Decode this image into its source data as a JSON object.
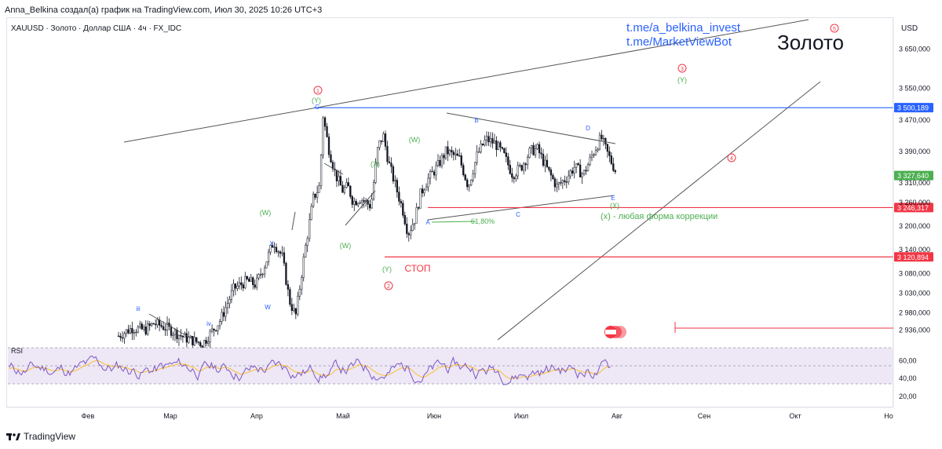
{
  "caption": "Anna_Belkina создал(а) график на TradingView.com, Июл 30, 2025 10:26 UTC+3",
  "symbol_line": "XAUUSD · Золото · Доллар США · 4ч · FX_IDC",
  "currency": "USD",
  "links": [
    "t.me/a_belkina_invest",
    "t.me/MarketViewBot"
  ],
  "watermark": "Золото",
  "footer_brand": "TradingView",
  "colors": {
    "blue_level": "#2962ff",
    "red_level": "#f23645",
    "green_level": "#4caf50",
    "candle": "#131722",
    "rsi_line": "#7e57c2",
    "rsi_ma": "#fbc02d",
    "rsi_band": "#ede7f6"
  },
  "chart_data": {
    "type": "candlestick",
    "x_labels": [
      "Фев",
      "Мар",
      "Апр",
      "Май",
      "Июн",
      "Июл",
      "Авг",
      "Сен",
      "Окт",
      "Но"
    ],
    "ylim": [
      2900,
      3730
    ],
    "y_ticks": [
      "3 650,000",
      "3 550,000",
      "3 470,000",
      "3 390,000",
      "3 310,000",
      "3 260,000",
      "3 200,000",
      "3 140,000",
      "3 080,000",
      "3 030,000",
      "2 980,000",
      "2 936,000"
    ],
    "y_tick_values": [
      3650,
      3550,
      3470,
      3390,
      3310,
      3260,
      3200,
      3140,
      3080,
      3030,
      2980,
      2936
    ],
    "price_path": [
      [
        0.125,
        2920
      ],
      [
        0.14,
        2940
      ],
      [
        0.155,
        2935
      ],
      [
        0.165,
        2952
      ],
      [
        0.18,
        2940
      ],
      [
        0.2,
        2915
      ],
      [
        0.22,
        2900
      ],
      [
        0.24,
        2960
      ],
      [
        0.255,
        3040
      ],
      [
        0.27,
        3060
      ],
      [
        0.28,
        3050
      ],
      [
        0.29,
        3100
      ],
      [
        0.3,
        3160
      ],
      [
        0.31,
        3120
      ],
      [
        0.318,
        3010
      ],
      [
        0.325,
        2970
      ],
      [
        0.335,
        3130
      ],
      [
        0.345,
        3270
      ],
      [
        0.352,
        3300
      ],
      [
        0.356,
        3480
      ],
      [
        0.362,
        3400
      ],
      [
        0.37,
        3330
      ],
      [
        0.378,
        3290
      ],
      [
        0.384,
        3300
      ],
      [
        0.39,
        3260
      ],
      [
        0.398,
        3270
      ],
      [
        0.41,
        3250
      ],
      [
        0.418,
        3400
      ],
      [
        0.424,
        3430
      ],
      [
        0.43,
        3360
      ],
      [
        0.438,
        3300
      ],
      [
        0.446,
        3240
      ],
      [
        0.452,
        3180
      ],
      [
        0.46,
        3220
      ],
      [
        0.466,
        3280
      ],
      [
        0.47,
        3300
      ],
      [
        0.475,
        3320
      ],
      [
        0.485,
        3350
      ],
      [
        0.495,
        3390
      ],
      [
        0.51,
        3370
      ],
      [
        0.52,
        3300
      ],
      [
        0.53,
        3380
      ],
      [
        0.54,
        3420
      ],
      [
        0.55,
        3410
      ],
      [
        0.56,
        3380
      ],
      [
        0.57,
        3330
      ],
      [
        0.58,
        3350
      ],
      [
        0.59,
        3390
      ],
      [
        0.598,
        3395
      ],
      [
        0.61,
        3340
      ],
      [
        0.62,
        3300
      ],
      [
        0.63,
        3320
      ],
      [
        0.64,
        3350
      ],
      [
        0.65,
        3330
      ],
      [
        0.66,
        3380
      ],
      [
        0.67,
        3425
      ],
      [
        0.676,
        3390
      ],
      [
        0.682,
        3360
      ],
      [
        0.688,
        3332
      ]
    ],
    "rsi": {
      "label": "RSI",
      "y_ticks": [
        "60,00",
        "40,00",
        "20,00"
      ],
      "y_tick_values": [
        60,
        40,
        20
      ],
      "upper": 70,
      "lower": 30,
      "ylim": [
        10,
        80
      ]
    },
    "levels": [
      {
        "name": "resistance-3500",
        "value": 3500.189,
        "label": "3 500,189",
        "color": "#2962ff"
      },
      {
        "name": "current-price",
        "value": 3327.64,
        "label": "3 327,640",
        "color": "#4caf50"
      },
      {
        "name": "support-3246",
        "value": 3246.317,
        "label": "3 246,317",
        "color": "#f23645"
      },
      {
        "name": "stop-3120",
        "value": 3120.894,
        "label": "3 120,894",
        "color": "#f23645"
      }
    ],
    "annotations": {
      "fib": "61,80%",
      "stop": "СТОП",
      "correction": "(x) - любая форма коррекции",
      "wave_red": [
        "1",
        "2",
        "3",
        "4",
        "5"
      ],
      "wave_green": [
        "(Y)",
        "(W)",
        "(X)",
        "(W)",
        "(Y)",
        "(W)",
        "(X)",
        "(Y)"
      ],
      "wave_blue": [
        "C",
        "A",
        "B",
        "C",
        "D",
        "E",
        "iii",
        "iv",
        "X",
        "W"
      ]
    }
  }
}
